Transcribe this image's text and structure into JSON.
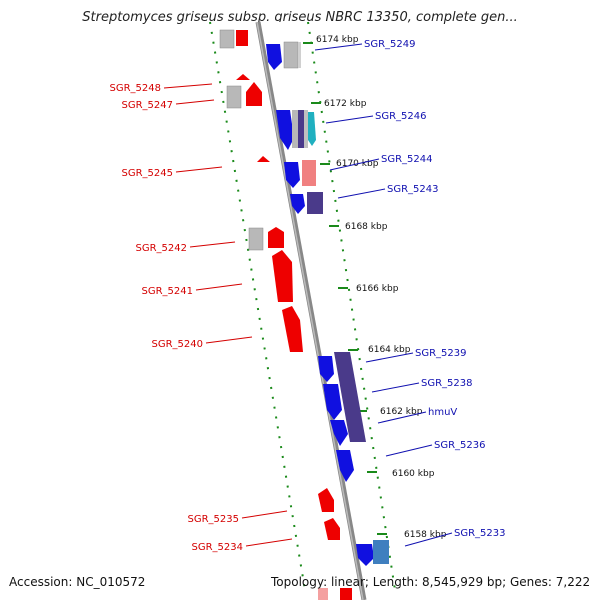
{
  "title": "Streptomyces griseus subsp. griseus NBRC 13350, complete gen...",
  "accession": "Accession: NC_010572",
  "summary": "Topology: linear; Length: 8,545,929 bp; Genes: 7,222",
  "colors": {
    "forward_gene": "#ee0000",
    "reverse_gene": "#1010e0",
    "pseudo_gray": "#b8b8b8",
    "teal": "#20b0c0",
    "purple": "#4a3a8a",
    "salmon": "#f08080",
    "tick_green": "#1a8a1a"
  },
  "ruler_ticks": [
    "6174 kbp",
    "6172 kbp",
    "6170 kbp",
    "6168 kbp",
    "6166 kbp",
    "6164 kbp",
    "6162 kbp",
    "6160 kbp",
    "6158 kbp"
  ],
  "left_labels": [
    "SGR_5248",
    "SGR_5247",
    "SGR_5245",
    "SGR_5242",
    "SGR_5241",
    "SGR_5240",
    "SGR_5235",
    "SGR_5234"
  ],
  "right_labels": [
    "SGR_5249",
    "SGR_5246",
    "SGR_5244",
    "SGR_5243",
    "SGR_5239",
    "SGR_5238",
    "hmuV",
    "SGR_5236",
    "SGR_5233"
  ]
}
